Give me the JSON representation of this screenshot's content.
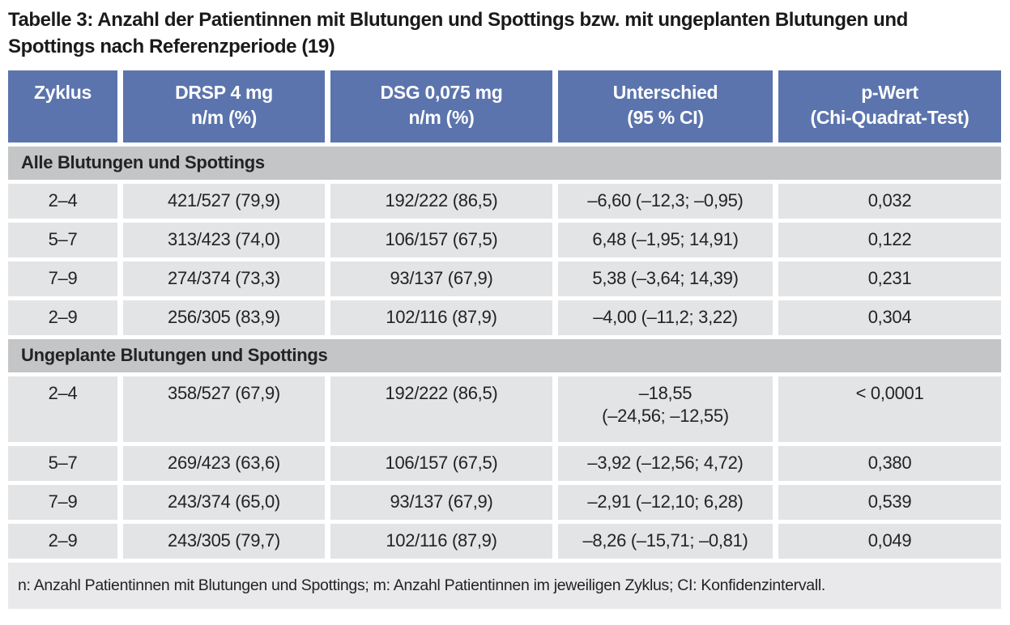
{
  "colors": {
    "header_bg": "#5b74ad",
    "header_text": "#ffffff",
    "section_bg": "#c3c5c7",
    "row_bg": "#e3e4e6",
    "footnote_bg": "#e9e9eb",
    "text": "#232323",
    "title_text": "#1a1a1a"
  },
  "title": {
    "line1": "Tabelle 3: Anzahl der Patientinnen mit Blutungen und Spottings bzw. mit ungeplanten Blutungen und",
    "line2": "Spottings nach Referenzperiode (19)"
  },
  "table": {
    "headers": [
      {
        "line1": "Zyklus",
        "line2": ""
      },
      {
        "line1": "DRSP 4 mg",
        "line2": "n/m (%)"
      },
      {
        "line1": "DSG 0,075 mg",
        "line2": "n/m (%)"
      },
      {
        "line1": "Unterschied",
        "line2": "(95 % CI)"
      },
      {
        "line1": "p-Wert",
        "line2": "(Chi-Quadrat-Test)"
      }
    ],
    "sections": [
      {
        "label": "Alle Blutungen und Spottings",
        "rows": [
          [
            "2–4",
            "421/527 (79,9)",
            "192/222 (86,5)",
            "–6,60 (–12,3; –0,95)",
            "0,032"
          ],
          [
            "5–7",
            "313/423 (74,0)",
            "106/157 (67,5)",
            "6,48 (–1,95; 14,91)",
            "0,122"
          ],
          [
            "7–9",
            "274/374 (73,3)",
            "93/137 (67,9)",
            "5,38 (–3,64; 14,39)",
            "0,231"
          ],
          [
            "2–9",
            "256/305 (83,9)",
            "102/116 (87,9)",
            "–4,00 (–11,2; 3,22)",
            "0,304"
          ]
        ]
      },
      {
        "label": "Ungeplante Blutungen und Spottings",
        "rows": [
          [
            "2–4",
            "358/527 (67,9)",
            "192/222 (86,5)",
            "–18,55\n(–24,56; –12,55)",
            "< 0,0001"
          ],
          [
            "5–7",
            "269/423 (63,6)",
            "106/157 (67,5)",
            "–3,92 (–12,56; 4,72)",
            "0,380"
          ],
          [
            "7–9",
            "243/374 (65,0)",
            "93/137 (67,9)",
            "–2,91 (–12,10; 6,28)",
            "0,539"
          ],
          [
            "2–9",
            "243/305 (79,7)",
            "102/116 (87,9)",
            "–8,26 (–15,71; –0,81)",
            "0,049"
          ]
        ]
      }
    ],
    "footnote": "n: Anzahl Patientinnen mit Blutungen und Spottings; m: Anzahl Patientinnen im jeweiligen Zyklus; CI: Konfidenzintervall."
  }
}
